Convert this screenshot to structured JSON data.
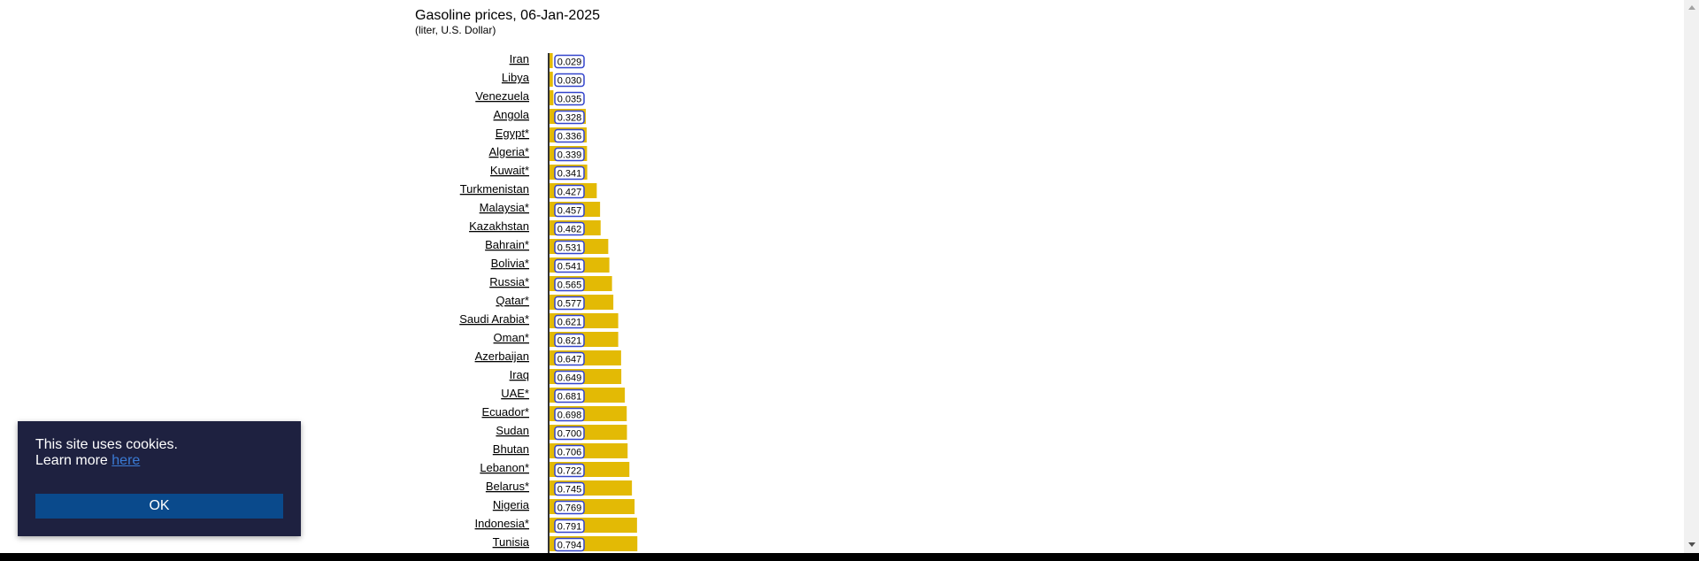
{
  "chart_data": {
    "type": "bar",
    "orientation": "horizontal",
    "title": "Gasoline prices, 06-Jan-2025",
    "subtitle": "(liter, U.S. Dollar)",
    "categories": [
      "Iran",
      "Libya",
      "Venezuela",
      "Angola",
      "Egypt*",
      "Algeria*",
      "Kuwait*",
      "Turkmenistan",
      "Malaysia*",
      "Kazakhstan",
      "Bahrain*",
      "Bolivia*",
      "Russia*",
      "Qatar*",
      "Saudi Arabia*",
      "Oman*",
      "Azerbaijan",
      "Iraq",
      "UAE*",
      "Ecuador*",
      "Sudan",
      "Bhutan",
      "Lebanon*",
      "Belarus*",
      "Nigeria",
      "Indonesia*",
      "Tunisia"
    ],
    "values": [
      0.029,
      0.03,
      0.035,
      0.328,
      0.336,
      0.339,
      0.341,
      0.427,
      0.457,
      0.462,
      0.531,
      0.541,
      0.565,
      0.577,
      0.621,
      0.621,
      0.647,
      0.649,
      0.681,
      0.698,
      0.7,
      0.706,
      0.722,
      0.745,
      0.769,
      0.791,
      0.794
    ],
    "value_labels": [
      "0.029",
      "0.030",
      "0.035",
      "0.328",
      "0.336",
      "0.339",
      "0.341",
      "0.427",
      "0.457",
      "0.462",
      "0.531",
      "0.541",
      "0.565",
      "0.577",
      "0.621",
      "0.621",
      "0.647",
      "0.649",
      "0.681",
      "0.698",
      "0.700",
      "0.706",
      "0.722",
      "0.745",
      "0.769",
      "0.791",
      "0.794"
    ],
    "bar_color": "#e3ba05",
    "axis_color": "#333333",
    "label_box_border": "#3344cc"
  },
  "cookie_banner": {
    "line1": "This site uses cookies.",
    "line2_prefix": "Learn more ",
    "link_text": "here",
    "ok_label": "OK",
    "background": "#1e2140",
    "button_color": "#0a4a8c"
  }
}
